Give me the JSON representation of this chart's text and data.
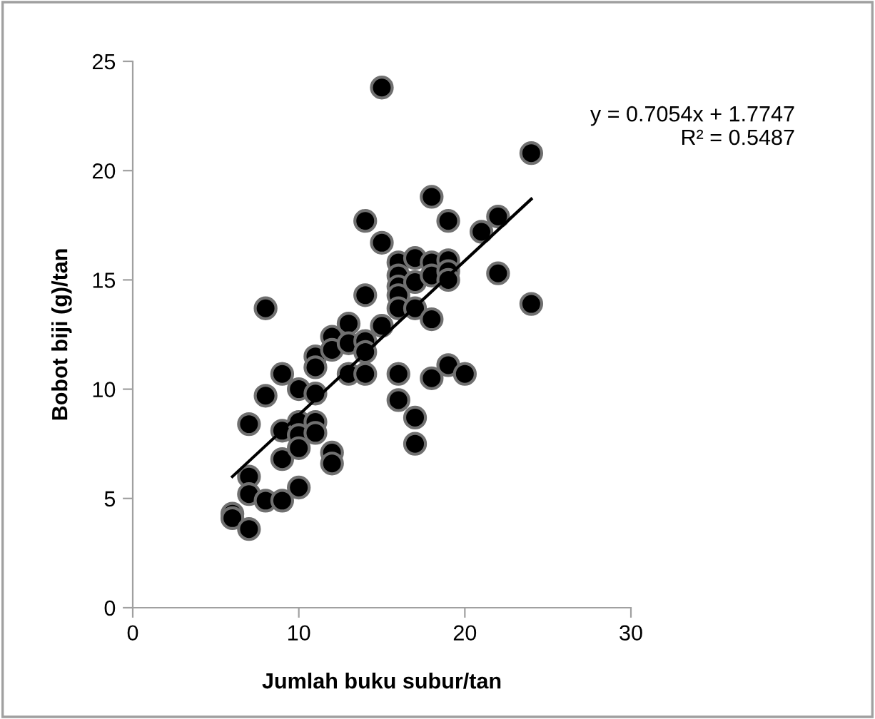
{
  "chart_data": {
    "type": "scatter",
    "xlabel": "Jumlah buku subur/tan",
    "ylabel": "Bobot biji (g)/tan",
    "xlim": [
      0,
      30
    ],
    "ylim": [
      0,
      25
    ],
    "xticks": [
      0,
      10,
      20,
      30
    ],
    "yticks": [
      0,
      5,
      10,
      15,
      20,
      25
    ],
    "grid": false,
    "legend": false,
    "marker": "circle",
    "annotations": [
      "y = 0.7054x + 1.7747\nR² = 0.5487"
    ],
    "series": [
      {
        "color": "#000000",
        "x": [
          6,
          6,
          7,
          7,
          7,
          7,
          8,
          8,
          8,
          9,
          9,
          9,
          9,
          10,
          10,
          10,
          10,
          10,
          11,
          11,
          11,
          11,
          11,
          12,
          12,
          12,
          12,
          13,
          13,
          13,
          14,
          14,
          14,
          14,
          14,
          15,
          15,
          15,
          16,
          16,
          16,
          16,
          16,
          16,
          16,
          17,
          17,
          17,
          17,
          17,
          18,
          18,
          18,
          18,
          18,
          19,
          19,
          19,
          19,
          19,
          20,
          21,
          22,
          22,
          24,
          24
        ],
        "values": [
          4.3,
          4.1,
          6.0,
          5.2,
          3.6,
          8.4,
          13.7,
          9.7,
          4.9,
          10.7,
          8.1,
          6.8,
          4.9,
          10.0,
          8.5,
          7.9,
          7.3,
          5.5,
          11.5,
          11.0,
          9.8,
          8.5,
          8.0,
          12.4,
          11.8,
          7.1,
          6.6,
          13.0,
          12.1,
          10.7,
          17.7,
          14.3,
          12.2,
          11.7,
          10.7,
          23.8,
          16.7,
          12.9,
          15.8,
          15.2,
          14.7,
          14.3,
          13.7,
          10.7,
          9.5,
          16.0,
          14.9,
          13.7,
          8.7,
          7.5,
          18.8,
          15.8,
          15.2,
          13.2,
          10.5,
          17.7,
          15.9,
          15.4,
          15.0,
          11.1,
          10.7,
          17.2,
          17.9,
          15.3,
          20.8,
          13.9
        ]
      },
      {
        "type": "line",
        "color": "#000000",
        "x": [
          6,
          24
        ],
        "values": [
          6.0,
          18.7
        ],
        "marker": "none",
        "line_style": "solid"
      }
    ]
  }
}
